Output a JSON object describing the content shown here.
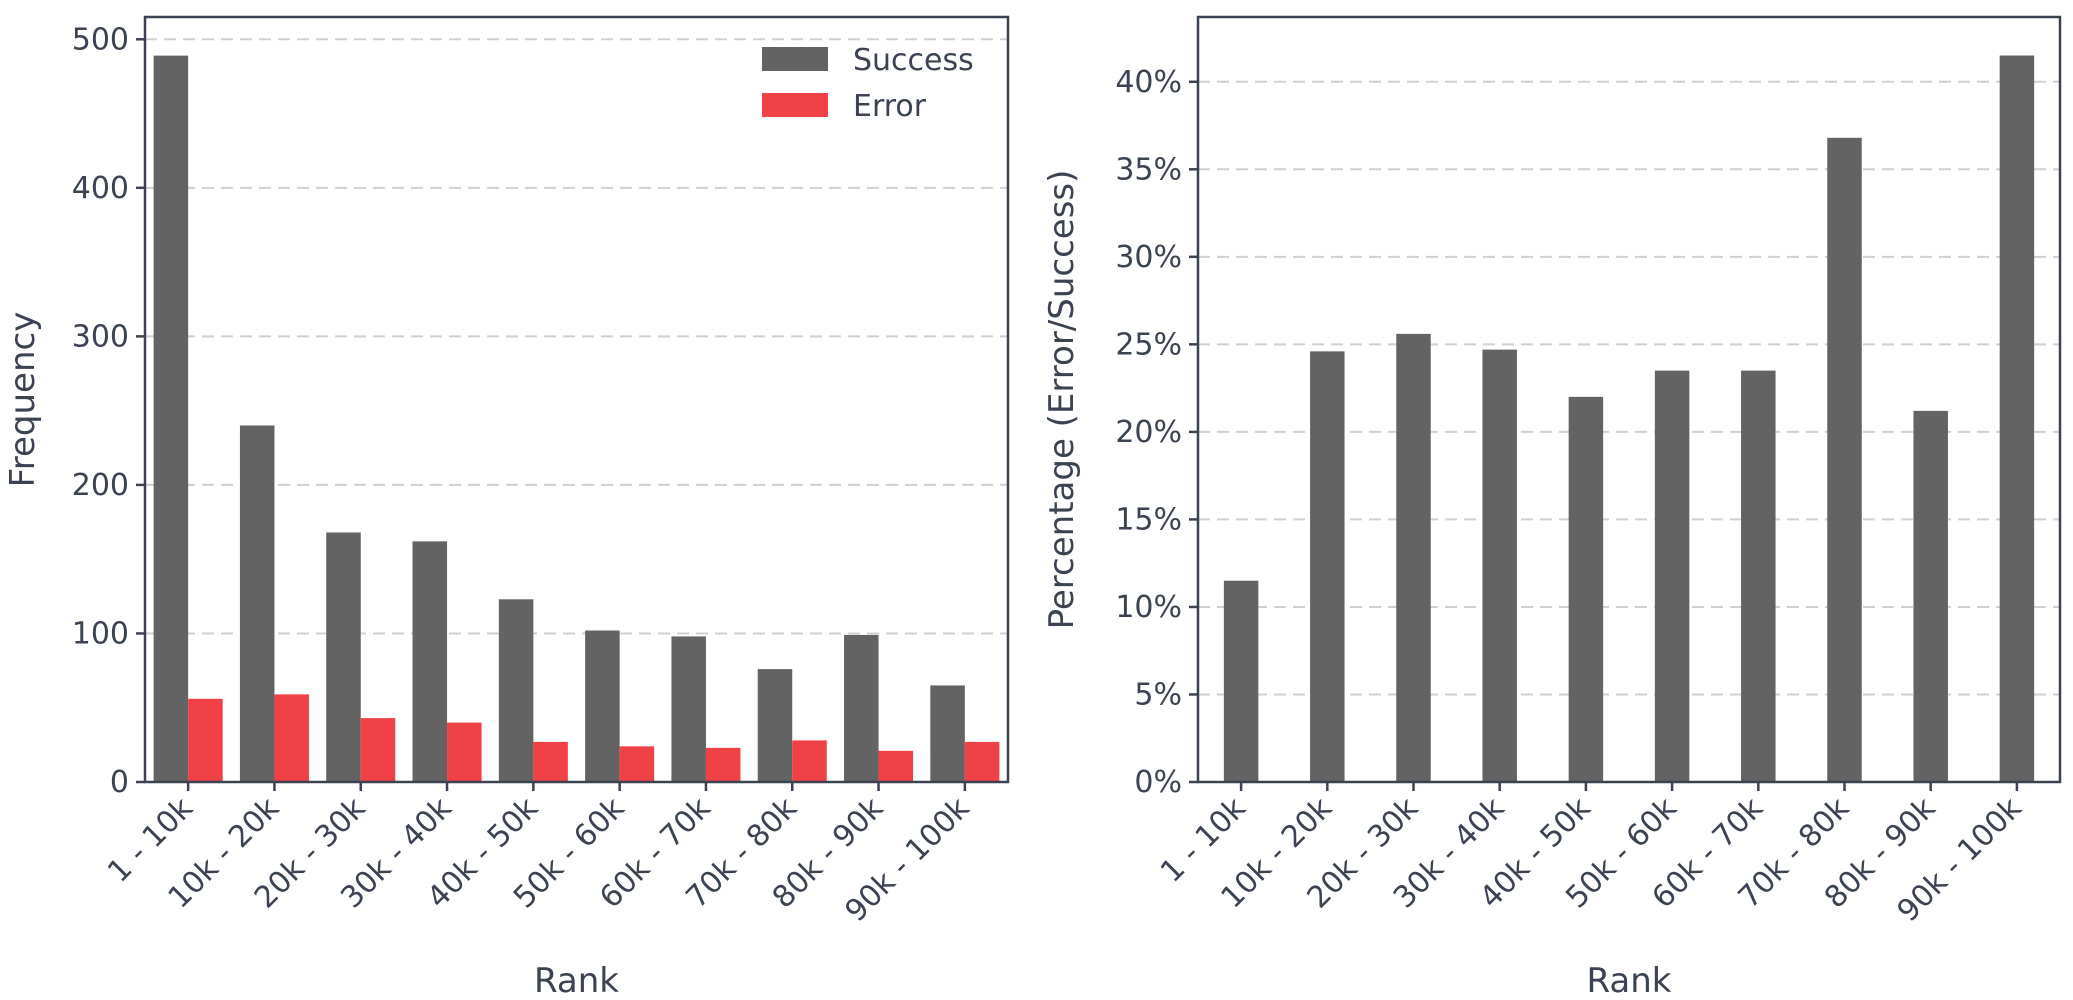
{
  "colors": {
    "success": "#636363",
    "error": "#ef4146",
    "axis": "#3b4252",
    "grid": "#d0d0d0",
    "text": "#3b4252"
  },
  "chart_data": [
    {
      "type": "bar",
      "categories": [
        "1 - 10k",
        "10k - 20k",
        "20k - 30k",
        "30k - 40k",
        "40k - 50k",
        "50k - 60k",
        "60k - 70k",
        "70k - 80k",
        "80k - 90k",
        "90k - 100k"
      ],
      "series": [
        {
          "name": "Success",
          "values": [
            489,
            240,
            168,
            162,
            123,
            102,
            98,
            76,
            99,
            65
          ]
        },
        {
          "name": "Error",
          "values": [
            56,
            59,
            43,
            40,
            27,
            24,
            23,
            28,
            21,
            27
          ]
        }
      ],
      "title": "",
      "xlabel": "Rank",
      "ylabel": "Frequency",
      "ylim": [
        0,
        515
      ],
      "yticks": [
        0,
        100,
        200,
        300,
        400,
        500
      ],
      "ytick_labels": [
        "0",
        "100",
        "200",
        "300",
        "400",
        "500"
      ],
      "grid": "horizontal dashed",
      "legend": "top-right"
    },
    {
      "type": "bar",
      "categories": [
        "1 - 10k",
        "10k - 20k",
        "20k - 30k",
        "30k - 40k",
        "40k - 50k",
        "50k - 60k",
        "60k - 70k",
        "70k - 80k",
        "80k - 90k",
        "90k - 100k"
      ],
      "series": [
        {
          "values": [
            11.5,
            24.6,
            25.6,
            24.7,
            22.0,
            23.5,
            23.5,
            36.8,
            21.2,
            41.5
          ]
        }
      ],
      "title": "",
      "xlabel": "Rank",
      "ylabel": "Percentage (Error/Success)",
      "ylim": [
        0,
        43.7
      ],
      "yticks": [
        0,
        5,
        10,
        15,
        20,
        25,
        30,
        35,
        40
      ],
      "ytick_labels": [
        "0%",
        "5%",
        "10%",
        "15%",
        "20%",
        "25%",
        "30%",
        "35%",
        "40%"
      ],
      "grid": "horizontal dashed",
      "legend": "none"
    }
  ]
}
